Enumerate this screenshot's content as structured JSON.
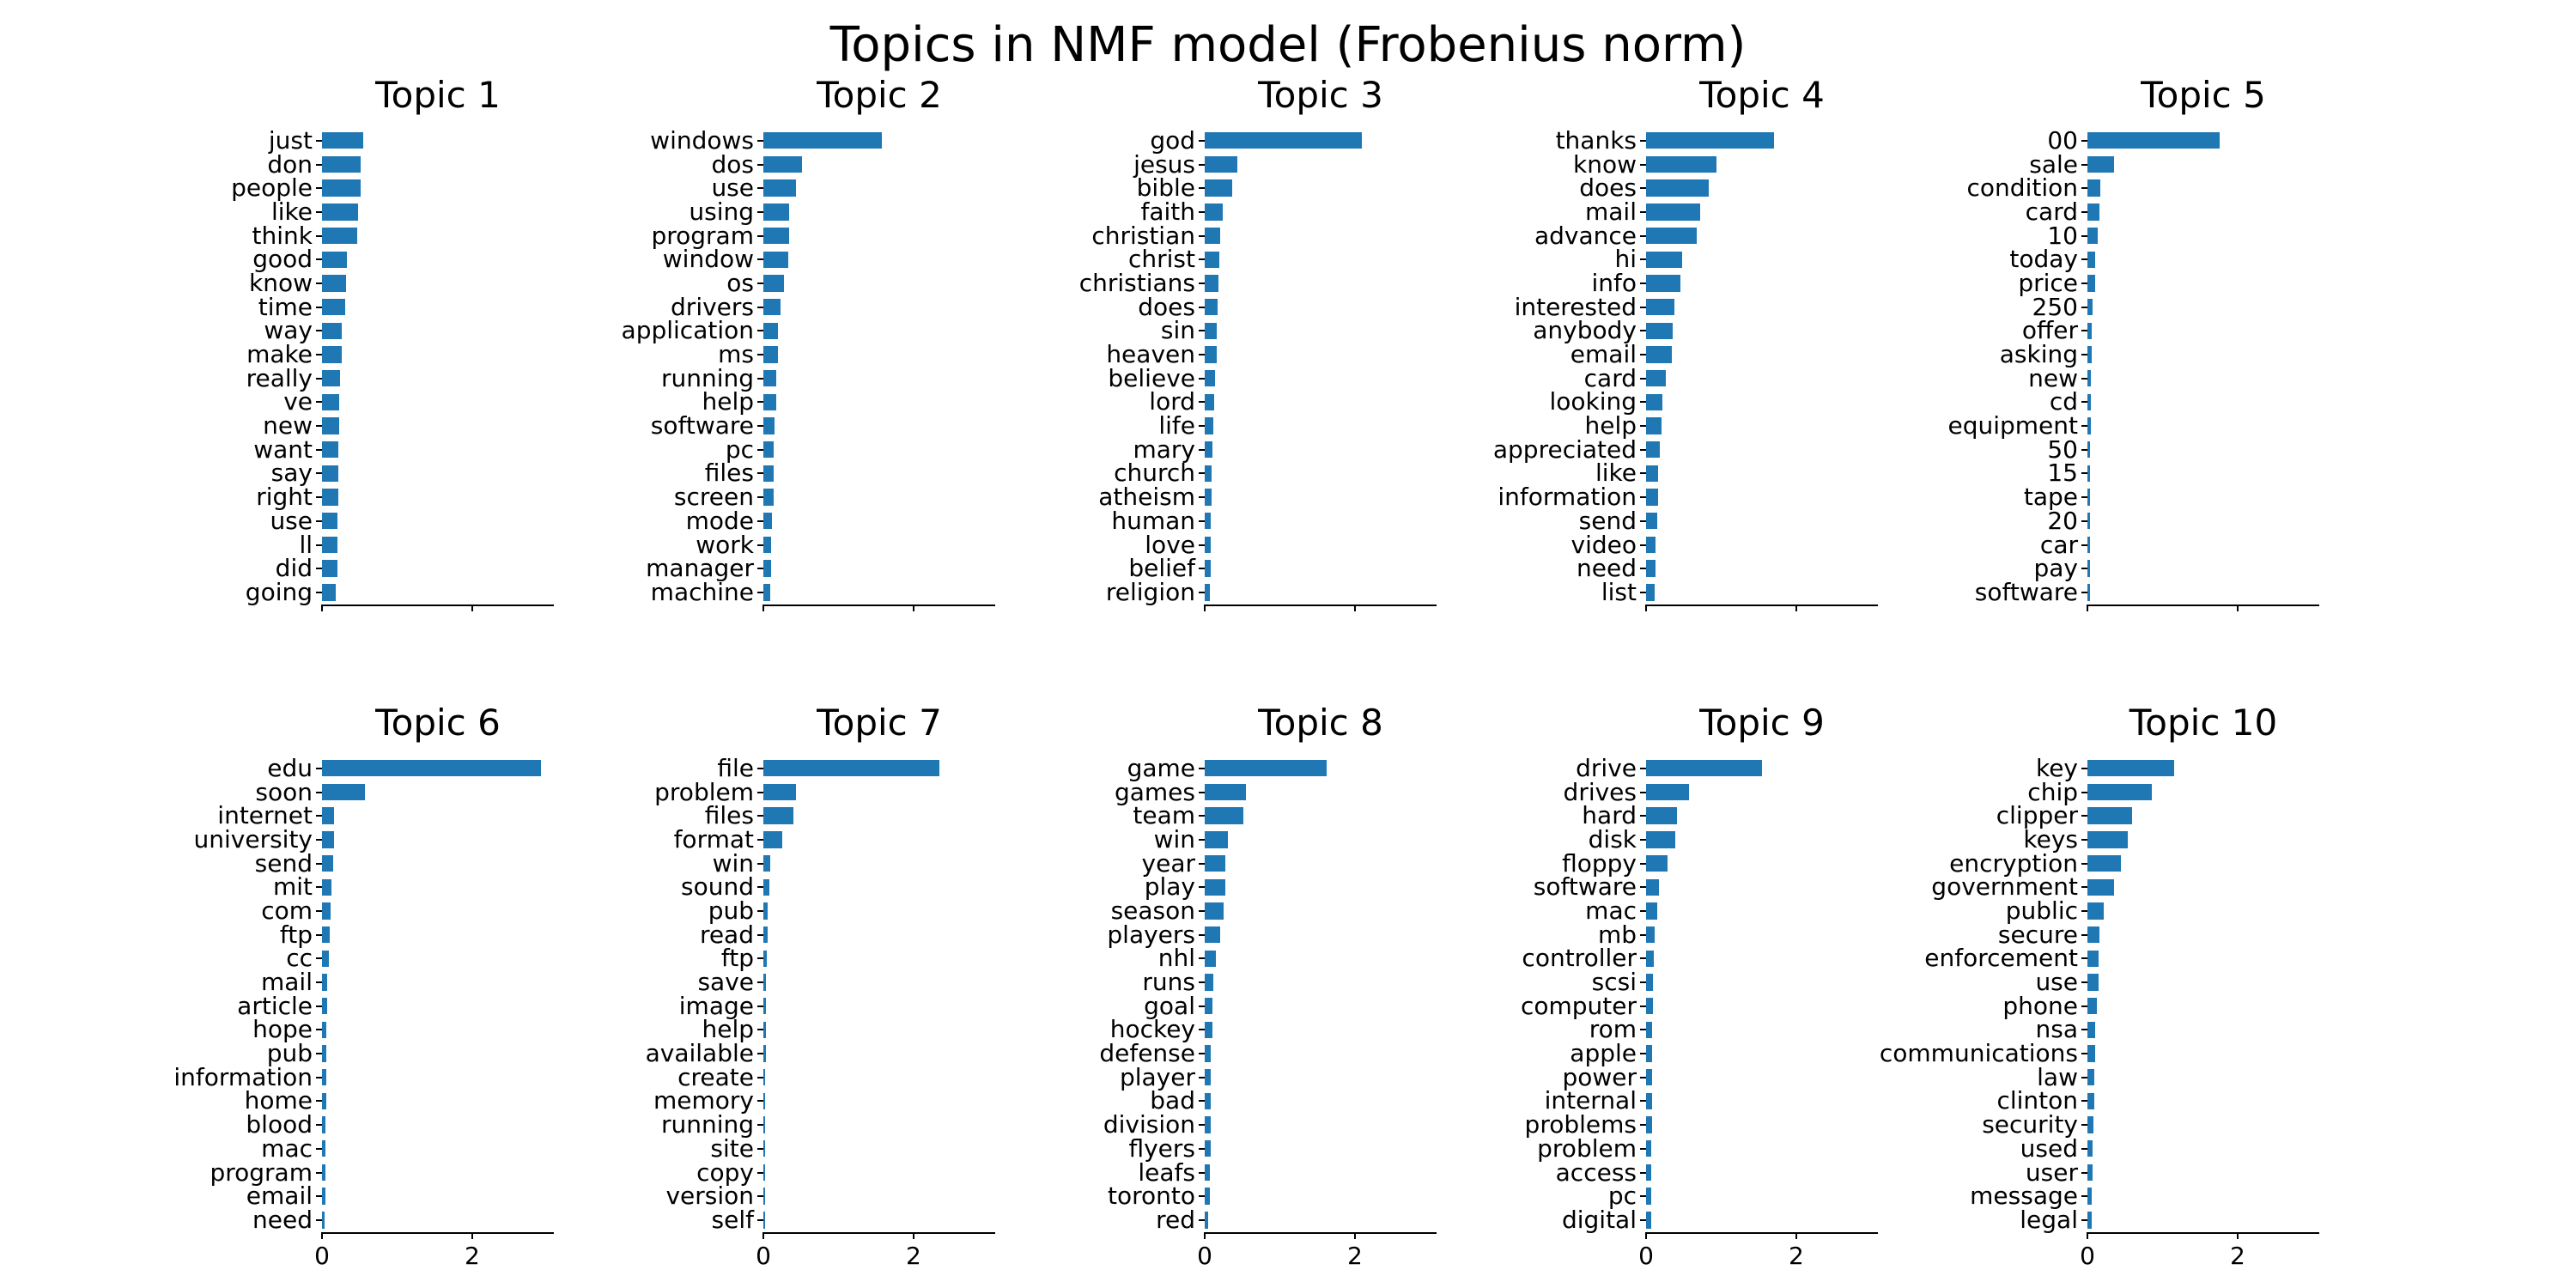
{
  "figure": {
    "suptitle": "Topics in NMF model (Frobenius norm)",
    "background": "#ffffff",
    "bar_color": "#1f77b4",
    "axis_color": "#000000"
  },
  "axis": {
    "xlim": [
      0,
      3.086
    ],
    "xticks": [
      0,
      2
    ],
    "xticklabels": [
      "0",
      "2"
    ],
    "bottom_row_only_labels": true
  },
  "chart_data": [
    {
      "type": "bar",
      "orientation": "horizontal",
      "title": "Topic 1",
      "categories": [
        "just",
        "don",
        "people",
        "like",
        "think",
        "good",
        "know",
        "time",
        "way",
        "make",
        "really",
        "ve",
        "new",
        "want",
        "say",
        "right",
        "use",
        "ll",
        "did",
        "going"
      ],
      "values": [
        0.55,
        0.52,
        0.51,
        0.48,
        0.47,
        0.33,
        0.32,
        0.31,
        0.26,
        0.26,
        0.24,
        0.23,
        0.23,
        0.22,
        0.22,
        0.22,
        0.21,
        0.21,
        0.21,
        0.18
      ]
    },
    {
      "type": "bar",
      "orientation": "horizontal",
      "title": "Topic 2",
      "categories": [
        "windows",
        "dos",
        "use",
        "using",
        "program",
        "window",
        "os",
        "drivers",
        "application",
        "ms",
        "running",
        "help",
        "software",
        "pc",
        "files",
        "screen",
        "mode",
        "work",
        "manager",
        "machine"
      ],
      "values": [
        1.58,
        0.52,
        0.43,
        0.34,
        0.34,
        0.33,
        0.27,
        0.23,
        0.2,
        0.19,
        0.17,
        0.17,
        0.15,
        0.14,
        0.14,
        0.14,
        0.12,
        0.1,
        0.1,
        0.09
      ]
    },
    {
      "type": "bar",
      "orientation": "horizontal",
      "title": "Topic 3",
      "categories": [
        "god",
        "jesus",
        "bible",
        "faith",
        "christian",
        "christ",
        "christians",
        "does",
        "sin",
        "heaven",
        "believe",
        "lord",
        "life",
        "mary",
        "church",
        "atheism",
        "human",
        "love",
        "belief",
        "religion"
      ],
      "values": [
        2.09,
        0.44,
        0.37,
        0.24,
        0.21,
        0.2,
        0.18,
        0.17,
        0.16,
        0.16,
        0.14,
        0.13,
        0.12,
        0.1,
        0.09,
        0.09,
        0.085,
        0.08,
        0.075,
        0.07
      ]
    },
    {
      "type": "bar",
      "orientation": "horizontal",
      "title": "Topic 4",
      "categories": [
        "thanks",
        "know",
        "does",
        "mail",
        "advance",
        "hi",
        "info",
        "interested",
        "anybody",
        "email",
        "card",
        "looking",
        "help",
        "appreciated",
        "like",
        "information",
        "send",
        "video",
        "need",
        "list"
      ],
      "values": [
        1.7,
        0.94,
        0.83,
        0.72,
        0.67,
        0.48,
        0.46,
        0.38,
        0.35,
        0.34,
        0.26,
        0.22,
        0.21,
        0.18,
        0.16,
        0.16,
        0.145,
        0.13,
        0.125,
        0.12
      ]
    },
    {
      "type": "bar",
      "orientation": "horizontal",
      "title": "Topic 5",
      "categories": [
        "00",
        "sale",
        "condition",
        "card",
        "10",
        "today",
        "price",
        "250",
        "offer",
        "asking",
        "new",
        "cd",
        "equipment",
        "50",
        "15",
        "tape",
        "20",
        "car",
        "pay",
        "software"
      ],
      "values": [
        1.76,
        0.35,
        0.17,
        0.16,
        0.14,
        0.105,
        0.1,
        0.07,
        0.06,
        0.057,
        0.05,
        0.05,
        0.045,
        0.04,
        0.04,
        0.04,
        0.035,
        0.033,
        0.032,
        0.03
      ]
    },
    {
      "type": "bar",
      "orientation": "horizontal",
      "title": "Topic 6",
      "categories": [
        "edu",
        "soon",
        "internet",
        "university",
        "send",
        "mit",
        "com",
        "ftp",
        "cc",
        "mail",
        "article",
        "hope",
        "pub",
        "information",
        "home",
        "blood",
        "mac",
        "program",
        "email",
        "need"
      ],
      "values": [
        2.92,
        0.57,
        0.16,
        0.155,
        0.15,
        0.13,
        0.12,
        0.1,
        0.095,
        0.07,
        0.068,
        0.06,
        0.058,
        0.055,
        0.052,
        0.05,
        0.05,
        0.045,
        0.043,
        0.04
      ]
    },
    {
      "type": "bar",
      "orientation": "horizontal",
      "title": "Topic 7",
      "categories": [
        "file",
        "problem",
        "files",
        "format",
        "win",
        "sound",
        "pub",
        "read",
        "ftp",
        "save",
        "image",
        "help",
        "available",
        "create",
        "memory",
        "running",
        "site",
        "copy",
        "version",
        "self"
      ],
      "values": [
        2.34,
        0.44,
        0.4,
        0.25,
        0.095,
        0.075,
        0.057,
        0.053,
        0.05,
        0.04,
        0.035,
        0.033,
        0.03,
        0.028,
        0.027,
        0.026,
        0.025,
        0.024,
        0.022,
        0.02
      ]
    },
    {
      "type": "bar",
      "orientation": "horizontal",
      "title": "Topic 8",
      "categories": [
        "game",
        "games",
        "team",
        "win",
        "year",
        "play",
        "season",
        "players",
        "nhl",
        "runs",
        "goal",
        "hockey",
        "defense",
        "player",
        "bad",
        "division",
        "flyers",
        "leafs",
        "toronto",
        "red"
      ],
      "values": [
        1.62,
        0.55,
        0.52,
        0.31,
        0.28,
        0.27,
        0.25,
        0.21,
        0.15,
        0.11,
        0.1,
        0.1,
        0.085,
        0.083,
        0.08,
        0.075,
        0.075,
        0.073,
        0.07,
        0.05
      ]
    },
    {
      "type": "bar",
      "orientation": "horizontal",
      "title": "Topic 9",
      "categories": [
        "drive",
        "drives",
        "hard",
        "disk",
        "floppy",
        "software",
        "mac",
        "mb",
        "controller",
        "scsi",
        "computer",
        "rom",
        "apple",
        "power",
        "internal",
        "problems",
        "problem",
        "access",
        "pc",
        "digital"
      ],
      "values": [
        1.54,
        0.57,
        0.41,
        0.39,
        0.29,
        0.17,
        0.15,
        0.11,
        0.1,
        0.095,
        0.09,
        0.085,
        0.082,
        0.08,
        0.078,
        0.075,
        0.07,
        0.07,
        0.065,
        0.065
      ]
    },
    {
      "type": "bar",
      "orientation": "horizontal",
      "title": "Topic 10",
      "categories": [
        "key",
        "chip",
        "clipper",
        "keys",
        "encryption",
        "government",
        "public",
        "secure",
        "enforcement",
        "use",
        "phone",
        "nsa",
        "communications",
        "law",
        "clinton",
        "security",
        "used",
        "user",
        "message",
        "legal"
      ],
      "values": [
        1.15,
        0.86,
        0.59,
        0.54,
        0.45,
        0.35,
        0.22,
        0.16,
        0.15,
        0.15,
        0.125,
        0.105,
        0.1,
        0.09,
        0.088,
        0.085,
        0.07,
        0.068,
        0.06,
        0.055
      ]
    }
  ]
}
